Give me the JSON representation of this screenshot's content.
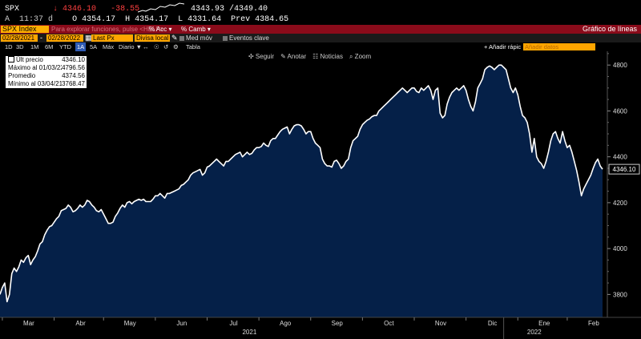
{
  "quote": {
    "ticker": "SPX",
    "last": "↓ 4346.10",
    "change": "-38.55",
    "bid_ask": "4343.93 /4349.40",
    "line2_prefix": "A",
    "time": "11:37 d",
    "open": "O 4354.17",
    "high": "H 4354.17",
    "low": "L 4331.64",
    "prev": "Prev 4384.65"
  },
  "command_bar": {
    "security": "SPX Index",
    "hint": "Para explorar funciones, pulse <HELP>",
    "acc_label": "% Acc ▾",
    "camb_label": "% Camb ▾",
    "title": "Gráfico de líneas"
  },
  "params": {
    "start_date": "02/28/2021",
    "end_date": "02/28/2022",
    "field": "Last Px",
    "currency": "Divisa local",
    "med_mov": "Med móv",
    "eventos": "Eventos clave"
  },
  "periods": [
    "1D",
    "3D",
    "1M",
    "6M",
    "YTD",
    "1A",
    "5A",
    "Máx",
    "Diario ▼",
    "↔",
    "☉",
    "↺",
    "⚙",
    "Tabla"
  ],
  "active_period": "1A",
  "add_quick": "+ Añadir rápic",
  "add_data": "Añadir datos",
  "chart_tools": [
    "✣ Seguir",
    "✎ Anotar",
    "☷ Noticias",
    "⌕ Zoom"
  ],
  "legend": [
    {
      "label": "Últ precio",
      "value": "4346.10"
    },
    {
      "label": "Máximo al 01/03/22",
      "value": "4796.56"
    },
    {
      "label": "Promedio",
      "value": "4374.56"
    },
    {
      "label": "Mínimo al 03/04/21",
      "value": "3768.47"
    }
  ],
  "colors": {
    "area_fill": "#052048",
    "line": "#ffffff",
    "accent_orange": "#ffa500",
    "command_red": "#8a0b1a",
    "last_red": "#ff4040"
  },
  "chart_data": {
    "type": "area",
    "title": "",
    "xlabel": "",
    "ylabel": "",
    "ylim": [
      3700,
      4860
    ],
    "y_ticks": [
      3800,
      4000,
      4200,
      4400,
      4600,
      4800
    ],
    "x_ticks": [
      "Mar",
      "Abr",
      "May",
      "Jun",
      "Jul",
      "Ago",
      "Sep",
      "Oct",
      "Nov",
      "Dic",
      "Ene",
      "Feb"
    ],
    "x_tick_pos": [
      1,
      23,
      44,
      66,
      88,
      110,
      132,
      154,
      176,
      198,
      220,
      241
    ],
    "year_labels": [
      {
        "text": "2021",
        "pos": 106
      },
      {
        "text": "2022",
        "pos": 227
      }
    ],
    "last_label": "4346.10",
    "values": [
      3800,
      3830,
      3850,
      3768,
      3800,
      3890,
      3915,
      3900,
      3920,
      3950,
      3940,
      3960,
      3970,
      3930,
      3950,
      3965,
      3990,
      4020,
      4030,
      4060,
      4080,
      4095,
      4100,
      4115,
      4130,
      4140,
      4165,
      4170,
      4175,
      4190,
      4180,
      4160,
      4165,
      4175,
      4190,
      4180,
      4190,
      4210,
      4205,
      4190,
      4180,
      4165,
      4160,
      4170,
      4150,
      4130,
      4110,
      4110,
      4115,
      4140,
      4155,
      4175,
      4190,
      4180,
      4200,
      4205,
      4195,
      4205,
      4210,
      4215,
      4210,
      4215,
      4205,
      4205,
      4205,
      4215,
      4230,
      4230,
      4240,
      4230,
      4220,
      4240,
      4240,
      4245,
      4250,
      4255,
      4260,
      4275,
      4280,
      4290,
      4300,
      4320,
      4330,
      4335,
      4340,
      4345,
      4320,
      4330,
      4355,
      4360,
      4370,
      4380,
      4390,
      4380,
      4370,
      4360,
      4380,
      4380,
      4390,
      4400,
      4410,
      4415,
      4420,
      4400,
      4410,
      4420,
      4410,
      4415,
      4430,
      4440,
      4440,
      4445,
      4460,
      4450,
      4445,
      4470,
      4480,
      4480,
      4495,
      4510,
      4520,
      4525,
      4530,
      4500,
      4520,
      4535,
      4540,
      4540,
      4535,
      4520,
      4500,
      4510,
      4510,
      4480,
      4460,
      4450,
      4440,
      4390,
      4370,
      4360,
      4360,
      4355,
      4380,
      4385,
      4370,
      4350,
      4360,
      4380,
      4390,
      4440,
      4470,
      4480,
      4490,
      4520,
      4540,
      4550,
      4560,
      4565,
      4575,
      4580,
      4580,
      4600,
      4610,
      4620,
      4630,
      4640,
      4650,
      4660,
      4670,
      4680,
      4690,
      4700,
      4690,
      4680,
      4690,
      4700,
      4700,
      4685,
      4680,
      4700,
      4690,
      4700,
      4710,
      4690,
      4650,
      4690,
      4700,
      4590,
      4570,
      4580,
      4630,
      4660,
      4680,
      4690,
      4700,
      4690,
      4700,
      4710,
      4690,
      4650,
      4620,
      4600,
      4640,
      4700,
      4720,
      4740,
      4780,
      4790,
      4796,
      4790,
      4780,
      4790,
      4800,
      4800,
      4790,
      4780,
      4740,
      4700,
      4680,
      4700,
      4670,
      4620,
      4580,
      4570,
      4550,
      4500,
      4420,
      4480,
      4400,
      4380,
      4370,
      4350,
      4380,
      4420,
      4470,
      4500,
      4510,
      4480,
      4460,
      4510,
      4470,
      4440,
      4450,
      4420,
      4380,
      4340,
      4290,
      4230,
      4260,
      4280,
      4300,
      4320,
      4350,
      4375,
      4390,
      4360,
      4346
    ]
  }
}
